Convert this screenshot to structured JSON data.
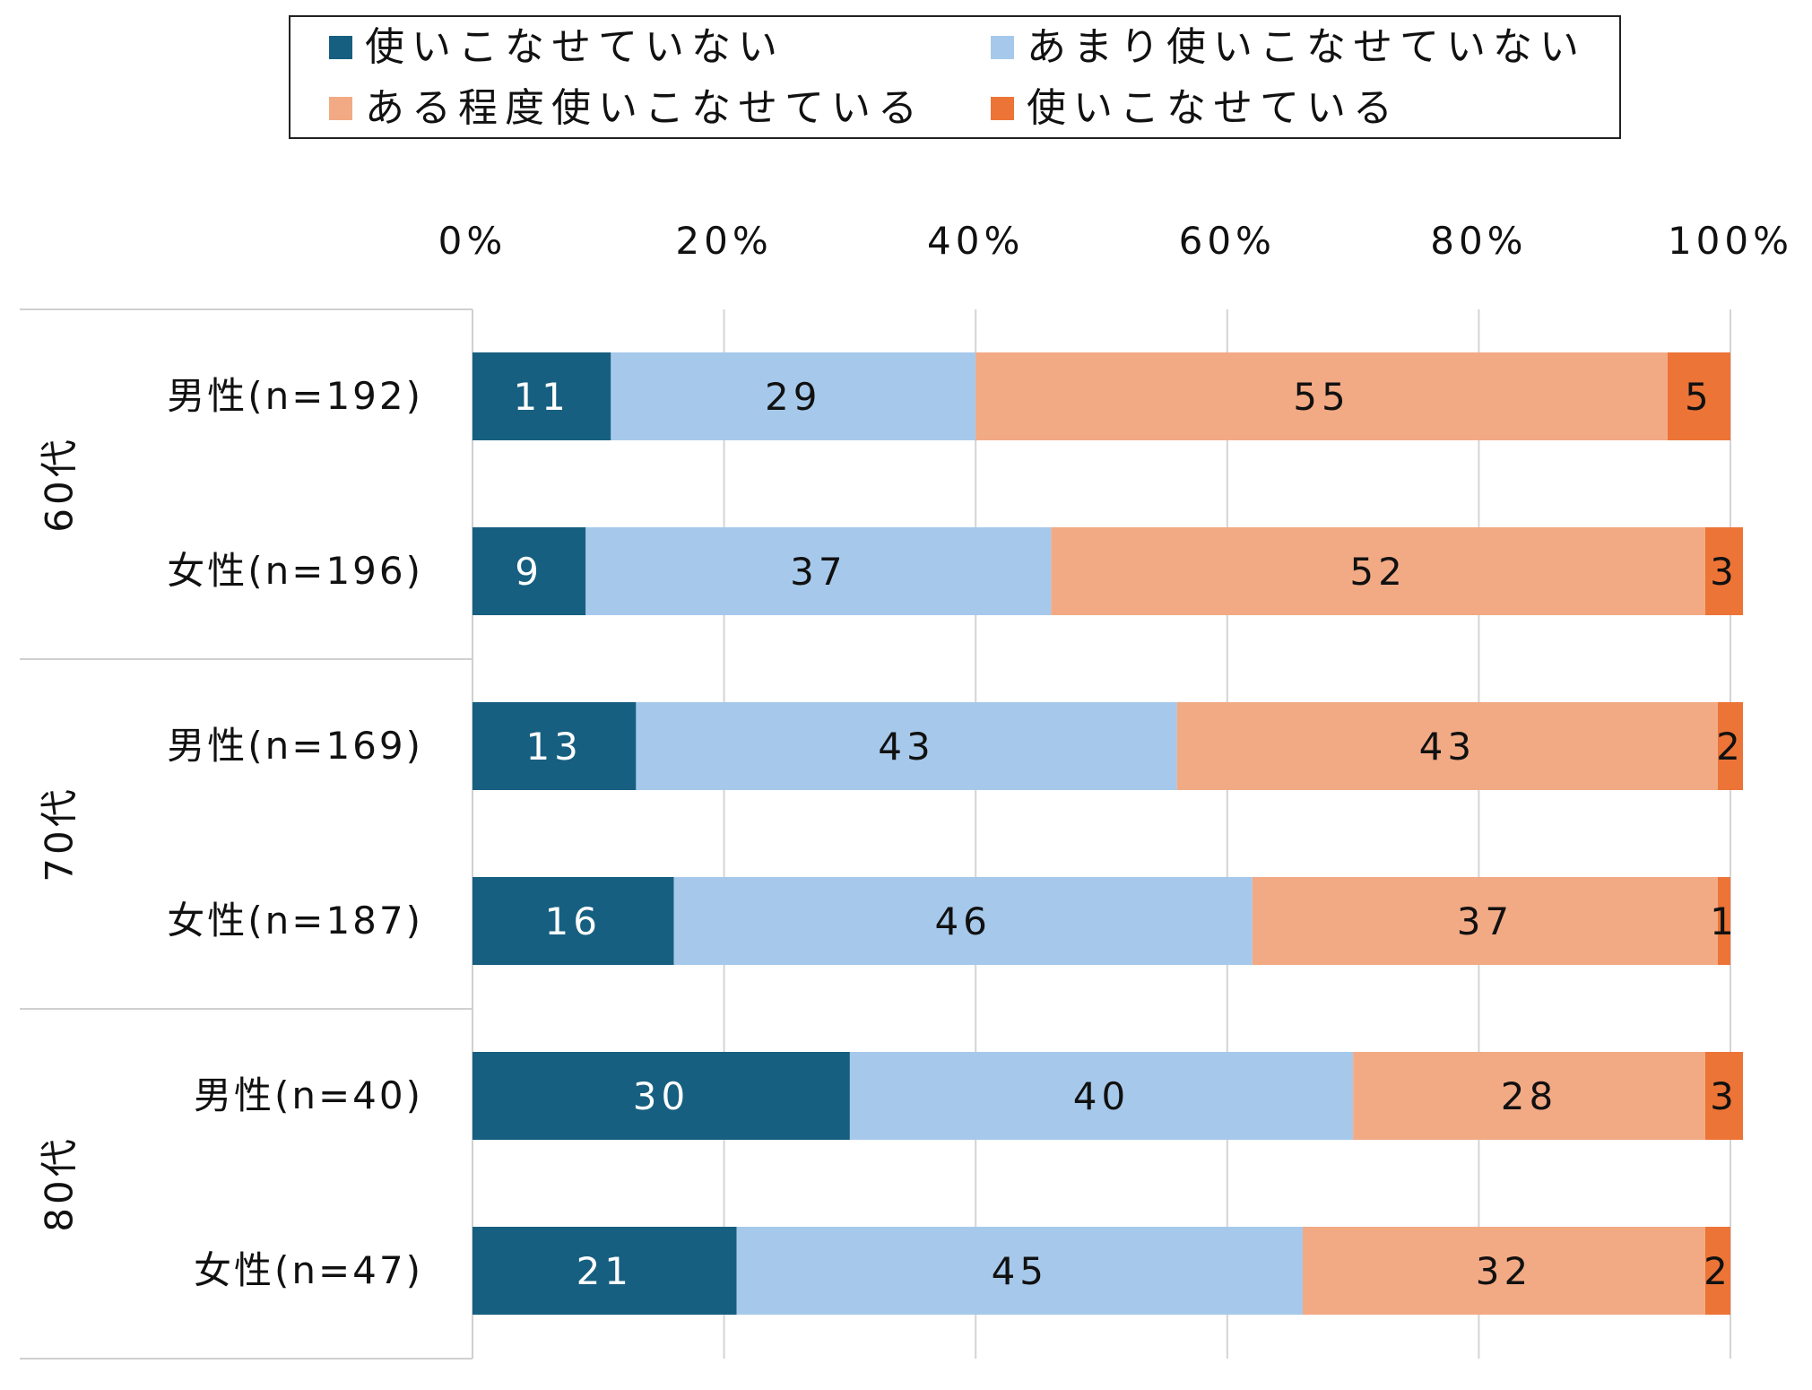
{
  "chart_data": {
    "type": "bar",
    "orientation": "horizontal",
    "stacked": true,
    "legend_position": "top",
    "grid": true,
    "xlim": [
      0,
      100
    ],
    "x_ticks": [
      "0%",
      "20%",
      "40%",
      "60%",
      "80%",
      "100%"
    ],
    "groups": [
      {
        "label": "60代",
        "categories": [
          "男性(n=192)",
          "女性(n=196)"
        ]
      },
      {
        "label": "70代",
        "categories": [
          "男性(n=169)",
          "女性(n=187)"
        ]
      },
      {
        "label": "80代",
        "categories": [
          "男性(n=40)",
          "女性(n=47)"
        ]
      }
    ],
    "categories": [
      "男性(n=192)",
      "女性(n=196)",
      "男性(n=169)",
      "女性(n=187)",
      "男性(n=40)",
      "女性(n=47)"
    ],
    "series": [
      {
        "name": "使いこなせていない",
        "color": "#175f80",
        "label_color": "#ffffff",
        "values": [
          11,
          9,
          13,
          16,
          30,
          21
        ]
      },
      {
        "name": "あまり使いこなせていない",
        "color": "#a6c9eb",
        "label_color": "#111111",
        "values": [
          29,
          37,
          43,
          46,
          40,
          45
        ]
      },
      {
        "name": "ある程度使いこなせている",
        "color": "#f2aa85",
        "label_color": "#111111",
        "values": [
          55,
          52,
          43,
          37,
          28,
          32
        ]
      },
      {
        "name": "使いこなせている",
        "color": "#ec7437",
        "label_color": "#111111",
        "values": [
          5,
          3,
          2,
          1,
          3,
          2
        ]
      }
    ]
  }
}
